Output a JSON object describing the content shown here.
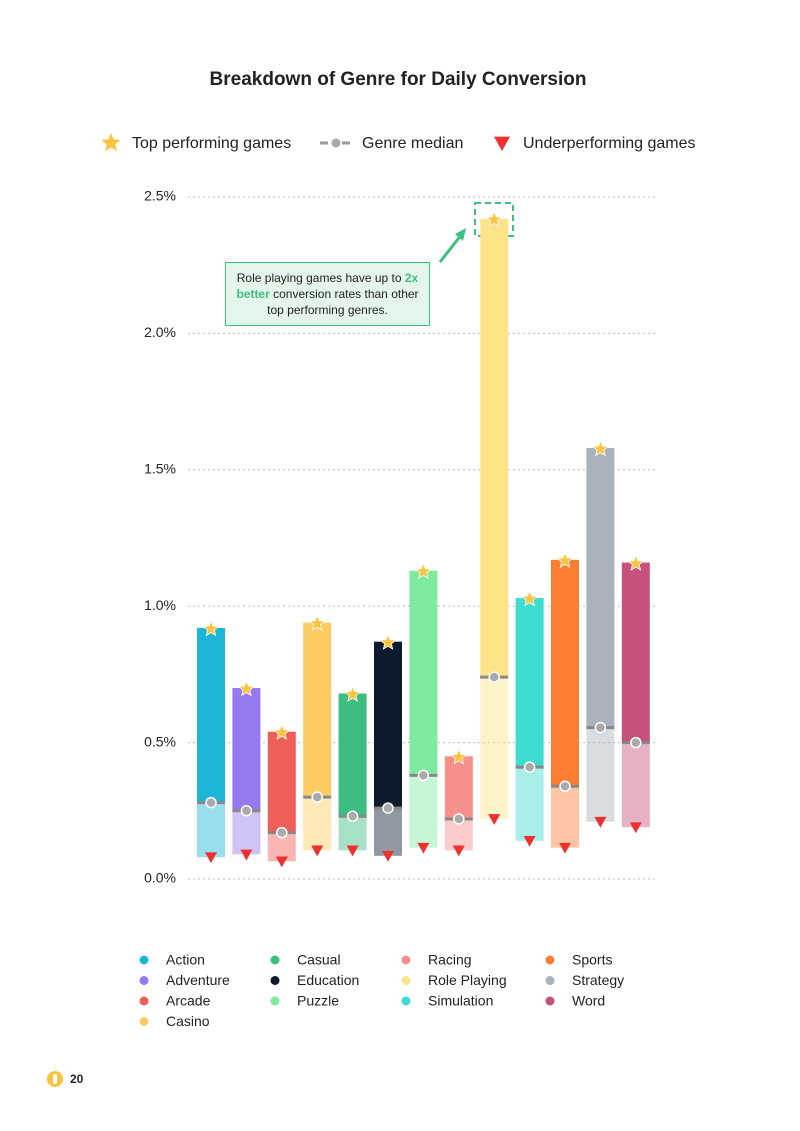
{
  "chart_data": {
    "type": "range_bar",
    "title": "Breakdown of Genre for Daily Conversion",
    "annotation": [
      "Role playing games have up to",
      "2x better",
      "conversion rates than other top performing genres."
    ],
    "categories": [
      "Action",
      "Adventure",
      "Arcade",
      "Casino",
      "Casual",
      "Education",
      "Puzzle",
      "Racing",
      "Role Playing",
      "Simulation",
      "Sports",
      "Strategy",
      "Word"
    ],
    "colors": [
      "#1cb5d6",
      "#9479ef",
      "#ef5e57",
      "#fccb62",
      "#3dbe80",
      "#0e1a2e",
      "#80eba0",
      "#f78f8b",
      "#fde488",
      "#3edcd0",
      "#fd7d33",
      "#aab2bc",
      "#c7517c"
    ],
    "series": [
      {
        "name": "Top performing games",
        "color": "#fbc541",
        "values": [
          0.92,
          0.7,
          0.54,
          0.94,
          0.68,
          0.87,
          1.13,
          0.45,
          2.42,
          1.03,
          1.17,
          1.58,
          1.16
        ]
      },
      {
        "name": "Genre median",
        "color": "#9a9a9a",
        "values": [
          0.28,
          0.25,
          0.17,
          0.3,
          0.23,
          0.26,
          0.38,
          0.22,
          0.74,
          0.41,
          0.34,
          0.555,
          0.5
        ]
      },
      {
        "name": "Underperforming games",
        "color": "#ee3030",
        "values": [
          0.08,
          0.09,
          0.065,
          0.105,
          0.105,
          0.085,
          0.115,
          0.105,
          0.22,
          0.14,
          0.115,
          0.21,
          0.19
        ]
      }
    ],
    "ylim": [
      0,
      2.5
    ],
    "yticks": [
      {
        "value": 0,
        "label": "0.0%"
      },
      {
        "value": 0.5,
        "label": "0.5%"
      },
      {
        "value": 1,
        "label": "1.0%"
      },
      {
        "value": 1.5,
        "label": "1.5%"
      },
      {
        "value": 2,
        "label": "2.0%"
      },
      {
        "value": 2.5,
        "label": "2.5%"
      }
    ],
    "grid": true
  },
  "page_number": "20"
}
